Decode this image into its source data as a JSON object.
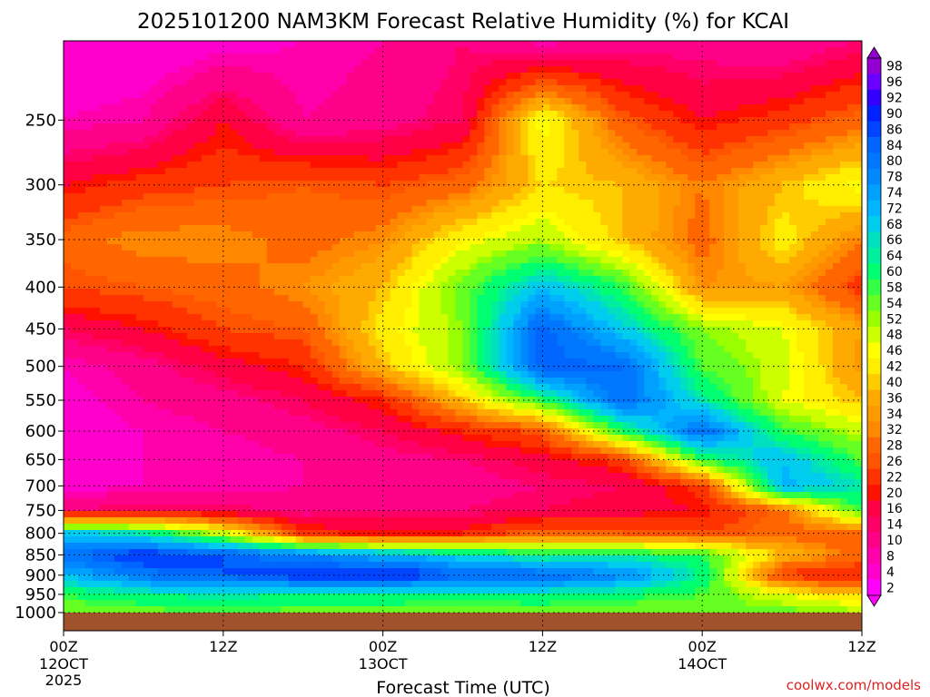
{
  "chart_data": {
    "type": "heatmap",
    "title": "2025101200 NAM3KM Forecast Relative Humidity (%) for KCAI",
    "xlabel": "Forecast Time (UTC)",
    "ylabel": "",
    "credit": "coolwx.com/models",
    "x_ticks": [
      {
        "hour": 0,
        "label1": "00Z",
        "label2": "12OCT",
        "label3": "2025"
      },
      {
        "hour": 12,
        "label1": "12Z",
        "label2": "",
        "label3": ""
      },
      {
        "hour": 24,
        "label1": "00Z",
        "label2": "13OCT",
        "label3": ""
      },
      {
        "hour": 36,
        "label1": "12Z",
        "label2": "",
        "label3": ""
      },
      {
        "hour": 48,
        "label1": "00Z",
        "label2": "14OCT",
        "label3": ""
      },
      {
        "hour": 60,
        "label1": "12Z",
        "label2": "",
        "label3": ""
      }
    ],
    "xlim": [
      0,
      60
    ],
    "y_ticks": [
      250,
      300,
      350,
      400,
      450,
      500,
      550,
      600,
      650,
      700,
      750,
      800,
      850,
      900,
      950,
      1000
    ],
    "ylim": [
      200,
      1000
    ],
    "y_scale": "log-pressure",
    "grid": "dotted",
    "colorbar": {
      "placement": "right",
      "labels": [
        "98",
        "96",
        "92",
        "90",
        "86",
        "84",
        "80",
        "78",
        "74",
        "72",
        "68",
        "66",
        "64",
        "60",
        "58",
        "54",
        "52",
        "48",
        "46",
        "42",
        "40",
        "36",
        "34",
        "32",
        "28",
        "26",
        "22",
        "20",
        "16",
        "14",
        "10",
        "8",
        "4",
        "2"
      ],
      "colors": [
        "#9400d3",
        "#6a00ff",
        "#3300ff",
        "#0022ff",
        "#0044ff",
        "#0066ff",
        "#0077ff",
        "#0088ff",
        "#00a0ff",
        "#00b4ff",
        "#00ccee",
        "#00e0c0",
        "#00eea0",
        "#00ff70",
        "#33ff44",
        "#66ff22",
        "#99ff00",
        "#ccff00",
        "#ffff00",
        "#ffee00",
        "#ffcc00",
        "#ffaa00",
        "#ff9900",
        "#ff8800",
        "#ff6600",
        "#ff5500",
        "#ff3300",
        "#ff1100",
        "#ff0044",
        "#ff0066",
        "#ff0088",
        "#ff00aa",
        "#ff00cc",
        "#ff00ff"
      ]
    },
    "rh_field": {
      "hours": [
        0,
        6,
        12,
        18,
        24,
        30,
        36,
        42,
        48,
        54,
        60
      ],
      "levels": [
        200,
        250,
        300,
        350,
        400,
        450,
        500,
        550,
        600,
        650,
        700,
        750,
        800,
        850,
        900,
        950,
        1000
      ],
      "values": [
        [
          4,
          4,
          6,
          8,
          10,
          14,
          8,
          12,
          12,
          10,
          14
        ],
        [
          8,
          10,
          20,
          10,
          12,
          16,
          48,
          28,
          20,
          24,
          30
        ],
        [
          20,
          24,
          26,
          28,
          26,
          30,
          42,
          40,
          32,
          40,
          48
        ],
        [
          30,
          34,
          34,
          30,
          34,
          46,
          52,
          40,
          30,
          44,
          32
        ],
        [
          26,
          28,
          30,
          34,
          40,
          56,
          72,
          60,
          34,
          36,
          24
        ],
        [
          16,
          20,
          26,
          28,
          44,
          54,
          86,
          70,
          54,
          48,
          36
        ],
        [
          8,
          12,
          18,
          22,
          40,
          54,
          86,
          84,
          58,
          50,
          34
        ],
        [
          6,
          10,
          12,
          16,
          22,
          40,
          60,
          84,
          66,
          48,
          40
        ],
        [
          6,
          8,
          10,
          12,
          16,
          22,
          28,
          60,
          84,
          60,
          50
        ],
        [
          6,
          8,
          8,
          10,
          12,
          14,
          18,
          24,
          60,
          72,
          58
        ],
        [
          6,
          8,
          8,
          10,
          10,
          12,
          14,
          16,
          24,
          74,
          66
        ],
        [
          14,
          16,
          16,
          12,
          14,
          14,
          16,
          18,
          20,
          30,
          60
        ],
        [
          70,
          66,
          50,
          24,
          20,
          22,
          30,
          28,
          26,
          30,
          28
        ],
        [
          84,
          90,
          86,
          80,
          74,
          68,
          62,
          64,
          60,
          40,
          30
        ],
        [
          72,
          82,
          86,
          90,
          92,
          86,
          84,
          80,
          64,
          24,
          20
        ],
        [
          60,
          64,
          66,
          64,
          64,
          64,
          64,
          62,
          58,
          48,
          40
        ],
        [
          54,
          56,
          58,
          56,
          56,
          54,
          56,
          54,
          56,
          56,
          54
        ]
      ]
    }
  }
}
